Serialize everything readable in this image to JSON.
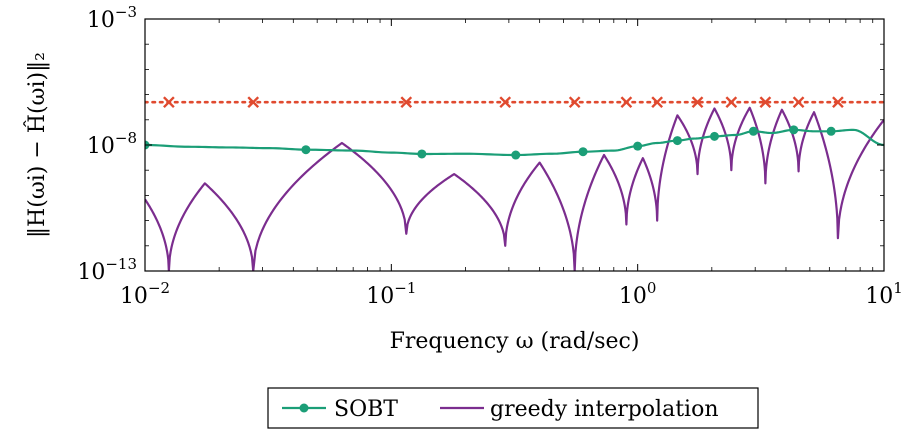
{
  "chart_data": {
    "type": "line",
    "title": "",
    "xlabel": "Frequency ω (rad/sec)",
    "ylabel": "‖H(ωi) − Ĥ(ωi)‖₂",
    "x_scale": "log",
    "y_scale": "log",
    "xlim": [
      0.01,
      10
    ],
    "ylim": [
      1e-13,
      0.001
    ],
    "x_ticks": [
      {
        "base": "10",
        "exp": "−2",
        "value": 0.01
      },
      {
        "base": "10",
        "exp": "−1",
        "value": 0.1
      },
      {
        "base": "10",
        "exp": "0",
        "value": 1
      },
      {
        "base": "10",
        "exp": "1",
        "value": 10
      }
    ],
    "y_ticks": [
      {
        "base": "10",
        "exp": "−13",
        "value": 1e-13
      },
      {
        "base": "10",
        "exp": "−8",
        "value": 1e-08
      },
      {
        "base": "10",
        "exp": "−3",
        "value": 0.001
      }
    ],
    "grid": false,
    "legend_position": "bottom-center",
    "series": [
      {
        "name": "SOBT",
        "color": "#1b9e77",
        "style": "solid-line-with-circle-markers",
        "x": [
          0.01,
          0.015,
          0.022,
          0.032,
          0.046,
          0.07,
          0.1,
          0.135,
          0.2,
          0.32,
          0.45,
          0.6,
          0.8,
          1.0,
          1.2,
          1.45,
          1.7,
          2.05,
          2.5,
          2.95,
          3.5,
          4.3,
          5.2,
          6.1,
          7.5,
          10
        ],
        "y": [
          1e-08,
          8.5e-09,
          8e-09,
          7.5e-09,
          6.5e-09,
          6e-09,
          5e-09,
          4.4e-09,
          4.5e-09,
          4e-09,
          4.5e-09,
          5.4e-09,
          6e-09,
          9e-09,
          1.2e-08,
          1.5e-08,
          1.8e-08,
          2.2e-08,
          2.5e-08,
          3.5e-08,
          3e-08,
          4e-08,
          3.5e-08,
          3.5e-08,
          4e-08,
          1e-08
        ],
        "marker_x": [
          0.01,
          0.045,
          0.133,
          0.32,
          0.6,
          1.0,
          1.45,
          2.05,
          2.95,
          4.3,
          6.1
        ],
        "marker_y": [
          1e-08,
          6.5e-09,
          4.4e-09,
          4e-09,
          5.4e-09,
          9e-09,
          1.5e-08,
          2.2e-08,
          3.5e-08,
          4e-08,
          3.5e-08
        ]
      },
      {
        "name": "greedy interpolation",
        "color": "#7b2d8e",
        "style": "solid-line",
        "peaks": [
          {
            "x": 0.0175,
            "y": 3e-10
          },
          {
            "x": 0.063,
            "y": 1.2e-08
          },
          {
            "x": 0.18,
            "y": 7e-10
          },
          {
            "x": 0.4,
            "y": 2e-09
          },
          {
            "x": 0.73,
            "y": 4e-09
          },
          {
            "x": 1.05,
            "y": 3e-09
          },
          {
            "x": 1.45,
            "y": 1.5e-07
          },
          {
            "x": 2.05,
            "y": 2.8e-07
          },
          {
            "x": 2.85,
            "y": 3e-07
          },
          {
            "x": 3.85,
            "y": 2.5e-07
          },
          {
            "x": 5.2,
            "y": 2e-07
          },
          {
            "x": 10,
            "y": 1e-07
          }
        ],
        "dips": [
          {
            "x": 0.0125,
            "y": 1e-13
          },
          {
            "x": 0.0275,
            "y": 1e-13
          },
          {
            "x": 0.115,
            "y": 3e-12
          },
          {
            "x": 0.29,
            "y": 1e-12
          },
          {
            "x": 0.555,
            "y": 1e-13
          },
          {
            "x": 0.9,
            "y": 7e-12
          },
          {
            "x": 1.2,
            "y": 1e-11
          },
          {
            "x": 1.75,
            "y": 7e-10
          },
          {
            "x": 2.4,
            "y": 1e-09
          },
          {
            "x": 3.3,
            "y": 3e-10
          },
          {
            "x": 4.5,
            "y": 9e-10
          },
          {
            "x": 6.5,
            "y": 2e-12
          }
        ],
        "start": {
          "x": 0.01,
          "y": 7e-11
        }
      },
      {
        "name": "",
        "color": "#e04a2f",
        "style": "dotted-line-with-x-markers",
        "y_constant": 5e-07,
        "marker_x": [
          0.0125,
          0.0275,
          0.115,
          0.29,
          0.555,
          0.9,
          1.2,
          1.75,
          2.4,
          3.3,
          4.5,
          6.5
        ]
      }
    ]
  },
  "legend": {
    "items": [
      {
        "label": "SOBT",
        "color": "#1b9e77"
      },
      {
        "label": "greedy interpolation",
        "color": "#7b2d8e"
      }
    ]
  }
}
